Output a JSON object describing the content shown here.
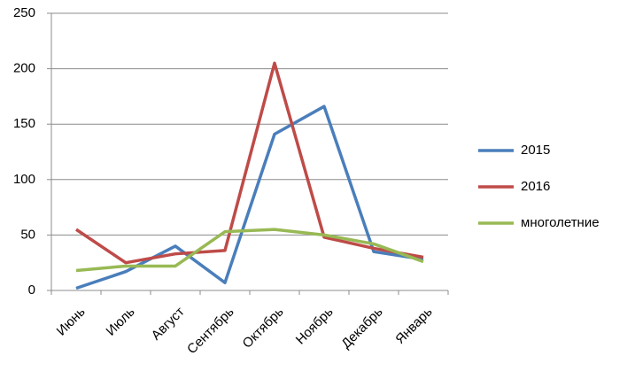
{
  "chart_data": {
    "type": "line",
    "categories": [
      "Июнь",
      "Июль",
      "Август",
      "Сентябрь",
      "Октябрь",
      "Ноябрь",
      "Декабрь",
      "Январь"
    ],
    "series": [
      {
        "name": "2015",
        "color": "#4a7ebb",
        "values": [
          2,
          17,
          40,
          7,
          141,
          166,
          35,
          28
        ]
      },
      {
        "name": "2016",
        "color": "#be4b48",
        "values": [
          55,
          25,
          33,
          36,
          205,
          48,
          38,
          30
        ]
      },
      {
        "name": "многолетние",
        "color": "#98b954",
        "values": [
          18,
          22,
          22,
          53,
          55,
          50,
          42,
          26
        ]
      }
    ],
    "ylim": [
      0,
      250
    ],
    "yticks": [
      0,
      50,
      100,
      150,
      200,
      250
    ],
    "grid": true,
    "legend": "right"
  }
}
